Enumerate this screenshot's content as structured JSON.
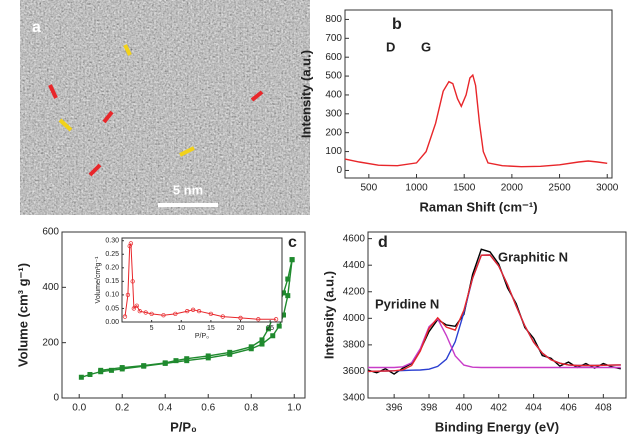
{
  "chart_data": [
    {
      "type": "image",
      "panel_label": "a",
      "scale_bar": "5 nm"
    },
    {
      "type": "line",
      "panel_label": "b",
      "xlabel": "Raman Shift (cm⁻¹)",
      "ylabel": "Intensity (a.u.)",
      "annotations": [
        "D",
        "G"
      ],
      "xlim": [
        250,
        3050
      ],
      "ylim": [
        -40,
        850
      ],
      "xticks": [
        500,
        1000,
        1500,
        2000,
        2500,
        3000
      ],
      "yticks": [
        0,
        100,
        200,
        300,
        400,
        500,
        600,
        700,
        800
      ],
      "series": [
        {
          "color": "#e8262a",
          "x": [
            250,
            400,
            600,
            800,
            1000,
            1100,
            1200,
            1280,
            1340,
            1380,
            1430,
            1470,
            1520,
            1560,
            1590,
            1620,
            1660,
            1700,
            1750,
            1900,
            2100,
            2300,
            2500,
            2700,
            2800,
            2900,
            3000
          ],
          "values": [
            60,
            45,
            28,
            25,
            40,
            100,
            250,
            420,
            470,
            460,
            380,
            340,
            400,
            490,
            505,
            450,
            250,
            100,
            40,
            25,
            20,
            22,
            30,
            45,
            50,
            45,
            38
          ]
        }
      ]
    },
    {
      "type": "line",
      "panel_label": "c",
      "xlabel": "P/P₀",
      "ylabel": "Volume (cm³ g⁻¹)",
      "xlim": [
        -0.08,
        1.05
      ],
      "ylim": [
        0,
        600
      ],
      "xticks": [
        {
          "value": 0,
          "label": "0.0"
        },
        0.2,
        0.4,
        0.6,
        0.8,
        {
          "value": 1,
          "label": "1.0"
        }
      ],
      "yticks": [
        0,
        200,
        400,
        600
      ],
      "series": [
        {
          "color": "#1f8a2e",
          "marker": "square",
          "x": [
            0.01,
            0.05,
            0.1,
            0.15,
            0.2,
            0.3,
            0.4,
            0.5,
            0.6,
            0.7,
            0.8,
            0.85,
            0.9,
            0.93,
            0.95,
            0.97,
            0.99
          ],
          "values": [
            75,
            85,
            95,
            100,
            105,
            115,
            125,
            135,
            145,
            158,
            178,
            195,
            225,
            260,
            300,
            370,
            500
          ]
        },
        {
          "color": "#1f8a2e",
          "marker": "square",
          "x": [
            0.99,
            0.97,
            0.95,
            0.93,
            0.9,
            0.88,
            0.85,
            0.8,
            0.7,
            0.6,
            0.5,
            0.45,
            0.4,
            0.3,
            0.2,
            0.1
          ],
          "values": [
            500,
            430,
            380,
            340,
            290,
            250,
            210,
            185,
            165,
            152,
            142,
            135,
            127,
            117,
            110,
            100
          ]
        }
      ],
      "inset": {
        "type": "line",
        "xlabel": "P/P₀",
        "ylabel": "Volume/cm³g⁻¹",
        "xlim": [
          0,
          27
        ],
        "ylim": [
          0,
          0.31
        ],
        "xticks": [
          5,
          10,
          15,
          20,
          25
        ],
        "yticks": [
          {
            "value": 0,
            "label": "0.00"
          },
          0.05,
          {
            "value": 0.1,
            "label": "0.10"
          },
          0.15,
          {
            "value": 0.2,
            "label": "0.20"
          },
          0.25,
          {
            "value": 0.3,
            "label": "0.30"
          }
        ],
        "series": [
          {
            "color": "#e8262a",
            "marker": "circle",
            "x": [
              0.5,
              1,
              1.3,
              1.5,
              1.8,
              2,
              2.5,
              3,
              4,
              5,
              7,
              9,
              11,
              12,
              13,
              15,
              17,
              20,
              23,
              26
            ],
            "values": [
              0.02,
              0.1,
              0.28,
              0.29,
              0.15,
              0.05,
              0.06,
              0.04,
              0.035,
              0.03,
              0.025,
              0.03,
              0.04,
              0.045,
              0.04,
              0.03,
              0.02,
              0.015,
              0.01,
              0.01
            ]
          }
        ]
      }
    },
    {
      "type": "line",
      "panel_label": "d",
      "xlabel": "Binding Energy (eV)",
      "ylabel": "Intensity (a.u.)",
      "annotations": [
        "Graphitic N",
        "Pyridine N"
      ],
      "xlim": [
        394.5,
        409.3
      ],
      "ylim": [
        3400,
        4650
      ],
      "xticks": [
        396,
        398,
        400,
        402,
        404,
        406,
        408
      ],
      "yticks": [
        3400,
        3600,
        3800,
        4000,
        4200,
        4400,
        4600
      ],
      "x": [
        394.5,
        395,
        395.5,
        396,
        396.5,
        397,
        397.5,
        398,
        398.5,
        399,
        399.5,
        400,
        400.5,
        401,
        401.5,
        402,
        402.5,
        403,
        403.5,
        404,
        404.5,
        405,
        405.5,
        406,
        406.5,
        407,
        407.5,
        408,
        408.5,
        409
      ],
      "series": [
        {
          "color": "#000000",
          "values": [
            3610,
            3590,
            3620,
            3580,
            3625,
            3660,
            3760,
            3900,
            3990,
            3950,
            3940,
            4030,
            4330,
            4520,
            4500,
            4410,
            4230,
            4110,
            3930,
            3850,
            3720,
            3700,
            3640,
            3670,
            3630,
            3660,
            3625,
            3660,
            3635,
            3620
          ]
        },
        {
          "color": "#2b3fd1",
          "values": [
            3600,
            3602,
            3603,
            3605,
            3607,
            3609,
            3611,
            3617,
            3638,
            3692,
            3823,
            4043,
            4301,
            4475,
            4477,
            4394,
            4254,
            4092,
            3942,
            3821,
            3738,
            3688,
            3662,
            3649,
            3645,
            3645,
            3645,
            3646,
            3648,
            3649
          ]
        },
        {
          "color": "#c83cc8",
          "values": [
            3630,
            3630,
            3630,
            3630,
            3635,
            3666,
            3772,
            3936,
            3996,
            3871,
            3718,
            3648,
            3632,
            3630,
            3630,
            3630,
            3630,
            3630,
            3630,
            3630,
            3630,
            3630,
            3630,
            3630,
            3630,
            3630,
            3630,
            3630,
            3630,
            3630
          ]
        },
        {
          "color": "#e8262a",
          "values": [
            3600,
            3602,
            3603,
            3605,
            3612,
            3645,
            3753,
            3923,
            4004,
            3933,
            3911,
            4061,
            4303,
            4475,
            4477,
            4394,
            4254,
            4092,
            3942,
            3821,
            3738,
            3688,
            3662,
            3649,
            3645,
            3645,
            3645,
            3646,
            3648,
            3649
          ]
        }
      ]
    }
  ]
}
